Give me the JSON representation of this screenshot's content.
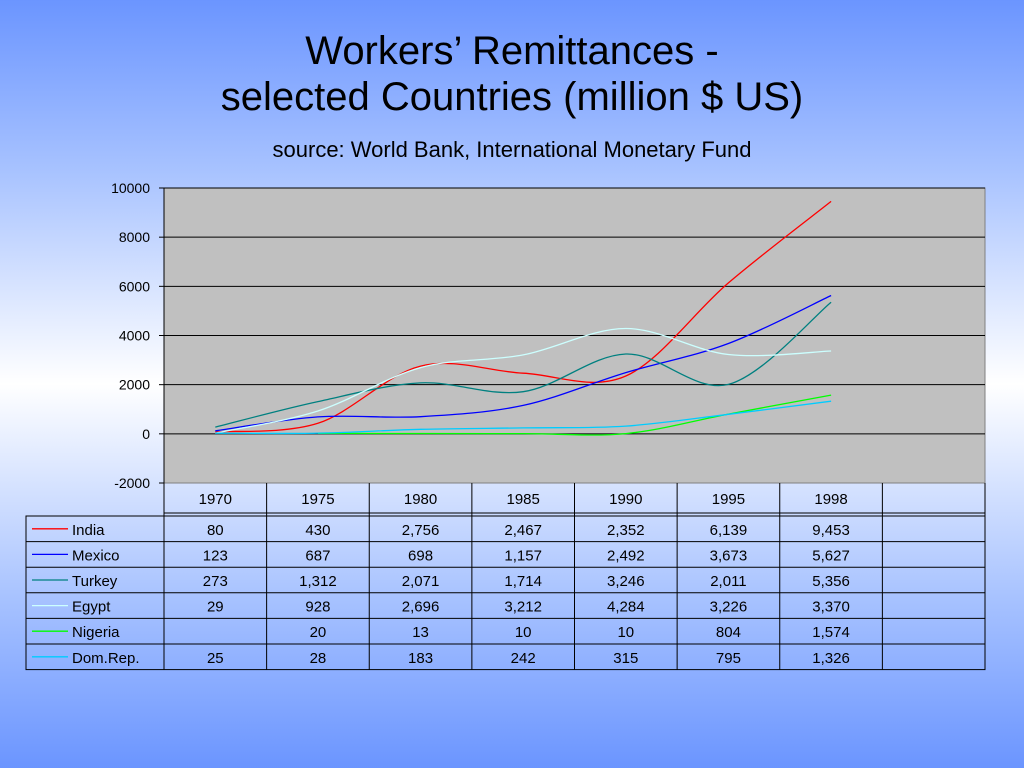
{
  "slide": {
    "title_line1": "Workers’ Remittances -",
    "title_line2": "selected Countries (million $ US)",
    "subtitle": "source: World Bank, International Monetary Fund"
  },
  "chart_data": {
    "type": "line",
    "title": "Workers’ Remittances - selected Countries (million $ US)",
    "categories": [
      "1970",
      "1975",
      "1980",
      "1985",
      "1990",
      "1995",
      "1998"
    ],
    "ylim": [
      -2000,
      10000
    ],
    "yticks": [
      "10000",
      "8000",
      "6000",
      "4000",
      "2000",
      "0",
      "-2000"
    ],
    "grid": true,
    "plot_background": "#c0c0c0",
    "legend_position": "data-table",
    "series": [
      {
        "name": "India",
        "color": "#ff0000",
        "values": [
          80,
          430,
          2756,
          2467,
          2352,
          6139,
          9453
        ],
        "labels": [
          "80",
          "430",
          "2,756",
          "2,467",
          "2,352",
          "6,139",
          "9,453"
        ]
      },
      {
        "name": "Mexico",
        "color": "#0000ff",
        "values": [
          123,
          687,
          698,
          1157,
          2492,
          3673,
          5627
        ],
        "labels": [
          "123",
          "687",
          "698",
          "1,157",
          "2,492",
          "3,673",
          "5,627"
        ]
      },
      {
        "name": "Turkey",
        "color": "#008080",
        "values": [
          273,
          1312,
          2071,
          1714,
          3246,
          2011,
          5356
        ],
        "labels": [
          "273",
          "1,312",
          "2,071",
          "1,714",
          "3,246",
          "2,011",
          "5,356"
        ]
      },
      {
        "name": "Egypt",
        "color": "#ccffff",
        "values": [
          29,
          928,
          2696,
          3212,
          4284,
          3226,
          3370
        ],
        "labels": [
          "29",
          "928",
          "2,696",
          "3,212",
          "4,284",
          "3,226",
          "3,370"
        ]
      },
      {
        "name": "Nigeria",
        "color": "#00ff00",
        "values": [
          null,
          20,
          13,
          10,
          10,
          804,
          1574
        ],
        "labels": [
          "",
          "20",
          "13",
          "10",
          "10",
          "804",
          "1,574"
        ]
      },
      {
        "name": "Dom.Rep.",
        "color": "#00ccff",
        "values": [
          25,
          28,
          183,
          242,
          315,
          795,
          1326
        ],
        "labels": [
          "25",
          "28",
          "183",
          "242",
          "315",
          "795",
          "1,326"
        ]
      }
    ]
  }
}
